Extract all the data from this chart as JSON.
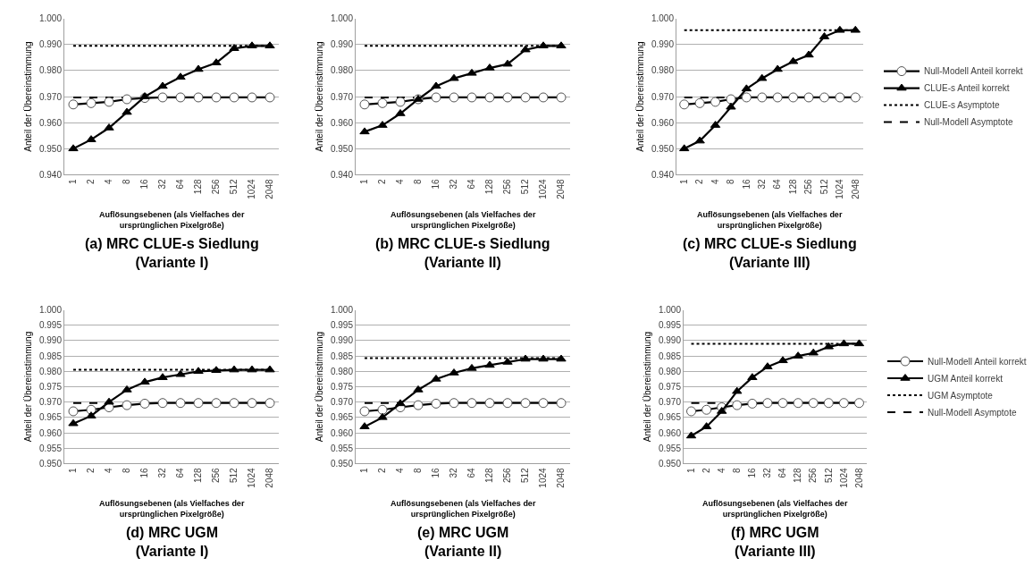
{
  "chart_data": [
    {
      "type": "line",
      "title": "(a) MRC CLUE-s Siedlung\n(Variante I)",
      "xlabel": "Auflösungsebenen (als Vielfaches der\nursprünglichen Pixelgröße)",
      "ylabel": "Anteil der Übereinstimmung",
      "categories": [
        "1",
        "2",
        "4",
        "8",
        "16",
        "32",
        "64",
        "128",
        "256",
        "512",
        "1024",
        "2048"
      ],
      "ylim": [
        0.94,
        1.0
      ],
      "yticks": [
        {
          "value": 0.94,
          "label": "0.940"
        },
        {
          "value": 0.95,
          "label": "0.950"
        },
        {
          "value": 0.96,
          "label": "0.960"
        },
        {
          "value": 0.97,
          "label": "0.970"
        },
        {
          "value": 0.98,
          "label": "0.980"
        },
        {
          "value": 0.99,
          "label": "0.990"
        },
        {
          "value": 1.0,
          "label": "1.000"
        }
      ],
      "grid": "y",
      "legend": false,
      "series": [
        {
          "color": "#000000",
          "marker": "none",
          "line_style": "dotted",
          "values": [
            0.9895,
            0.9895,
            0.9895,
            0.9895,
            0.9895,
            0.9895,
            0.9895,
            0.9895,
            0.9895,
            0.9895,
            0.9895,
            0.9895
          ]
        },
        {
          "color": "#000000",
          "marker": "none",
          "line_style": "dashed",
          "values": [
            0.9697,
            0.9697,
            0.9697,
            0.9697,
            null,
            null,
            null,
            null,
            null,
            null,
            null,
            null
          ]
        },
        {
          "color": "#000000",
          "marker": "circle",
          "line_style": "solid",
          "values": [
            0.967,
            0.9675,
            0.968,
            0.969,
            0.9695,
            0.9697,
            0.9697,
            0.9697,
            0.9697,
            0.9697,
            0.9697,
            0.9697
          ]
        },
        {
          "color": "#000000",
          "marker": "triangle",
          "line_style": "solid",
          "values": [
            0.95,
            0.9535,
            0.958,
            0.964,
            0.97,
            0.974,
            0.9775,
            0.9805,
            0.983,
            0.9885,
            0.9895,
            0.9895
          ]
        }
      ]
    },
    {
      "type": "line",
      "title": "(b) MRC CLUE-s Siedlung\n(Variante II)",
      "xlabel": "Auflösungsebenen (als Vielfaches der\nursprünglichen Pixelgröße)",
      "ylabel": "Anteil der Übereinstimmung",
      "categories": [
        "1",
        "2",
        "4",
        "8",
        "16",
        "32",
        "64",
        "128",
        "256",
        "512",
        "1024",
        "2048"
      ],
      "ylim": [
        0.94,
        1.0
      ],
      "yticks": [
        {
          "value": 0.94,
          "label": "0.940"
        },
        {
          "value": 0.95,
          "label": "0.950"
        },
        {
          "value": 0.96,
          "label": "0.960"
        },
        {
          "value": 0.97,
          "label": "0.970"
        },
        {
          "value": 0.98,
          "label": "0.980"
        },
        {
          "value": 0.99,
          "label": "0.990"
        },
        {
          "value": 1.0,
          "label": "1.000"
        }
      ],
      "grid": "y",
      "legend": false,
      "series": [
        {
          "color": "#000000",
          "marker": "none",
          "line_style": "dotted",
          "values": [
            0.9895,
            0.9895,
            0.9895,
            0.9895,
            0.9895,
            0.9895,
            0.9895,
            0.9895,
            0.9895,
            0.9895,
            0.9895,
            0.9895
          ]
        },
        {
          "color": "#000000",
          "marker": "none",
          "line_style": "dashed",
          "values": [
            0.9697,
            0.9697,
            0.9697,
            0.9697,
            null,
            null,
            null,
            null,
            null,
            null,
            null,
            null
          ]
        },
        {
          "color": "#000000",
          "marker": "circle",
          "line_style": "solid",
          "values": [
            0.967,
            0.9675,
            0.968,
            0.969,
            0.9697,
            0.9697,
            0.9697,
            0.9697,
            0.9697,
            0.9697,
            0.9697,
            0.9697
          ]
        },
        {
          "color": "#000000",
          "marker": "triangle",
          "line_style": "solid",
          "values": [
            0.9565,
            0.959,
            0.9635,
            0.969,
            0.974,
            0.977,
            0.979,
            0.981,
            0.9825,
            0.988,
            0.9895,
            0.9895
          ]
        }
      ]
    },
    {
      "type": "line",
      "title": "(c) MRC CLUE-s Siedlung\n(Variante III)",
      "xlabel": "Auflösungsebenen (als Vielfaches der\nursprünglichen Pixelgröße)",
      "ylabel": "Anteil der Übereinstimmung",
      "categories": [
        "1",
        "2",
        "4",
        "8",
        "16",
        "32",
        "64",
        "128",
        "256",
        "512",
        "1024",
        "2048"
      ],
      "ylim": [
        0.94,
        1.0
      ],
      "yticks": [
        {
          "value": 0.94,
          "label": "0.940"
        },
        {
          "value": 0.95,
          "label": "0.950"
        },
        {
          "value": 0.96,
          "label": "0.960"
        },
        {
          "value": 0.97,
          "label": "0.970"
        },
        {
          "value": 0.98,
          "label": "0.980"
        },
        {
          "value": 0.99,
          "label": "0.990"
        },
        {
          "value": 1.0,
          "label": "1.000"
        }
      ],
      "grid": "y",
      "legend": "right",
      "series": [
        {
          "name": "Null-Modell Anteil korrekt",
          "color": "#000000",
          "marker": "circle",
          "line_style": "solid",
          "values": [
            0.967,
            0.9675,
            0.968,
            0.969,
            0.9697,
            0.9697,
            0.9697,
            0.9697,
            0.9697,
            0.9697,
            0.9697,
            0.9697
          ]
        },
        {
          "name": "CLUE-s Anteil korrekt",
          "color": "#000000",
          "marker": "triangle",
          "line_style": "solid",
          "values": [
            0.95,
            0.953,
            0.959,
            0.966,
            0.973,
            0.977,
            0.9805,
            0.9835,
            0.986,
            0.993,
            0.9955,
            0.9955
          ]
        },
        {
          "name": "CLUE-s Asymptote",
          "color": "#000000",
          "marker": "none",
          "line_style": "dotted",
          "values": [
            0.9955,
            0.9955,
            0.9955,
            0.9955,
            0.9955,
            0.9955,
            0.9955,
            0.9955,
            0.9955,
            0.9955,
            0.9955,
            0.9955
          ]
        },
        {
          "name": "Null-Modell Asymptote",
          "color": "#000000",
          "marker": "none",
          "line_style": "dashed",
          "values": [
            0.9697,
            0.9697,
            0.9697,
            0.9697,
            null,
            null,
            null,
            null,
            null,
            null,
            null,
            null
          ]
        }
      ]
    },
    {
      "type": "line",
      "title": "(d) MRC UGM\n(Variante I)",
      "xlabel": "Auflösungsebenen (als Vielfaches der\nursprünglichen Pixelgröße)",
      "ylabel": "Anteil der Übereinstimmung",
      "categories": [
        "1",
        "2",
        "4",
        "8",
        "16",
        "32",
        "64",
        "128",
        "256",
        "512",
        "1024",
        "2048"
      ],
      "ylim": [
        0.95,
        1.0
      ],
      "yticks": [
        {
          "value": 0.95,
          "label": "0.950"
        },
        {
          "value": 0.955,
          "label": "0.955"
        },
        {
          "value": 0.96,
          "label": "0.960"
        },
        {
          "value": 0.965,
          "label": "0.965"
        },
        {
          "value": 0.97,
          "label": "0.970"
        },
        {
          "value": 0.975,
          "label": "0.975"
        },
        {
          "value": 0.98,
          "label": "0.980"
        },
        {
          "value": 0.985,
          "label": "0.985"
        },
        {
          "value": 0.99,
          "label": "0.990"
        },
        {
          "value": 0.995,
          "label": "0.995"
        },
        {
          "value": 1.0,
          "label": "1.000"
        }
      ],
      "grid": "y",
      "legend": false,
      "series": [
        {
          "color": "#000000",
          "marker": "none",
          "line_style": "dotted",
          "values": [
            0.9805,
            0.9805,
            0.9805,
            0.9805,
            0.9805,
            0.9805,
            0.9805,
            0.9805,
            0.9805,
            0.9805,
            0.9805,
            0.9805
          ]
        },
        {
          "color": "#000000",
          "marker": "none",
          "line_style": "dashed",
          "values": [
            0.9697,
            0.9697,
            0.9697,
            null,
            null,
            null,
            null,
            null,
            null,
            null,
            null,
            null
          ]
        },
        {
          "color": "#000000",
          "marker": "circle",
          "line_style": "solid",
          "values": [
            0.967,
            0.9675,
            0.9683,
            0.969,
            0.9695,
            0.9697,
            0.9697,
            0.9697,
            0.9697,
            0.9697,
            0.9697,
            0.9697
          ]
        },
        {
          "color": "#000000",
          "marker": "triangle",
          "line_style": "solid",
          "values": [
            0.963,
            0.9655,
            0.97,
            0.974,
            0.9765,
            0.978,
            0.979,
            0.98,
            0.9803,
            0.9805,
            0.9805,
            0.9805
          ]
        }
      ]
    },
    {
      "type": "line",
      "title": "(e) MRC UGM\n(Variante II)",
      "xlabel": "Auflösungsebenen (als Vielfaches der\nursprünglichen Pixelgröße)",
      "ylabel": "Anteil der Übereinstimmung",
      "categories": [
        "1",
        "2",
        "4",
        "8",
        "16",
        "32",
        "64",
        "128",
        "256",
        "512",
        "1024",
        "2048"
      ],
      "ylim": [
        0.95,
        1.0
      ],
      "yticks": [
        {
          "value": 0.95,
          "label": "0.950"
        },
        {
          "value": 0.955,
          "label": "0.955"
        },
        {
          "value": 0.96,
          "label": "0.960"
        },
        {
          "value": 0.965,
          "label": "0.965"
        },
        {
          "value": 0.97,
          "label": "0.970"
        },
        {
          "value": 0.975,
          "label": "0.975"
        },
        {
          "value": 0.98,
          "label": "0.980"
        },
        {
          "value": 0.985,
          "label": "0.985"
        },
        {
          "value": 0.99,
          "label": "0.990"
        },
        {
          "value": 0.995,
          "label": "0.995"
        },
        {
          "value": 1.0,
          "label": "1.000"
        }
      ],
      "grid": "y",
      "legend": false,
      "series": [
        {
          "color": "#000000",
          "marker": "none",
          "line_style": "dotted",
          "values": [
            0.9843,
            0.9843,
            0.9843,
            0.9843,
            0.9843,
            0.9843,
            0.9843,
            0.9843,
            0.9843,
            0.9843,
            0.9843,
            0.9843
          ]
        },
        {
          "color": "#000000",
          "marker": "none",
          "line_style": "dashed",
          "values": [
            0.9697,
            0.9697,
            0.9697,
            null,
            null,
            null,
            null,
            null,
            null,
            null,
            null,
            null
          ]
        },
        {
          "color": "#000000",
          "marker": "circle",
          "line_style": "solid",
          "values": [
            0.967,
            0.9675,
            0.9683,
            0.969,
            0.9695,
            0.9697,
            0.9697,
            0.9697,
            0.9697,
            0.9697,
            0.9697,
            0.9697
          ]
        },
        {
          "color": "#000000",
          "marker": "triangle",
          "line_style": "solid",
          "values": [
            0.962,
            0.965,
            0.9695,
            0.974,
            0.9775,
            0.9795,
            0.981,
            0.982,
            0.983,
            0.984,
            0.984,
            0.984
          ]
        }
      ]
    },
    {
      "type": "line",
      "title": "(f) MRC UGM\n(Variante III)",
      "xlabel": "Auflösungsebenen (als Vielfaches der\nursprünglichen Pixelgröße)",
      "ylabel": "Anteil der Übereinstimmung",
      "categories": [
        "1",
        "2",
        "4",
        "8",
        "16",
        "32",
        "64",
        "128",
        "256",
        "512",
        "1024",
        "2048"
      ],
      "ylim": [
        0.95,
        1.0
      ],
      "yticks": [
        {
          "value": 0.95,
          "label": "0.950"
        },
        {
          "value": 0.955,
          "label": "0.955"
        },
        {
          "value": 0.96,
          "label": "0.960"
        },
        {
          "value": 0.965,
          "label": "0.965"
        },
        {
          "value": 0.97,
          "label": "0.970"
        },
        {
          "value": 0.975,
          "label": "0.975"
        },
        {
          "value": 0.98,
          "label": "0.980"
        },
        {
          "value": 0.985,
          "label": "0.985"
        },
        {
          "value": 0.99,
          "label": "0.990"
        },
        {
          "value": 0.995,
          "label": "0.995"
        },
        {
          "value": 1.0,
          "label": "1.000"
        }
      ],
      "grid": "y",
      "legend": "right",
      "series": [
        {
          "name": "Null-Modell Anteil korrekt",
          "color": "#000000",
          "marker": "circle",
          "line_style": "solid",
          "values": [
            0.967,
            0.9675,
            0.9683,
            0.969,
            0.9695,
            0.9697,
            0.9697,
            0.9697,
            0.9697,
            0.9697,
            0.9697,
            0.9697
          ]
        },
        {
          "name": "UGM Anteil korrekt",
          "color": "#000000",
          "marker": "triangle",
          "line_style": "solid",
          "values": [
            0.959,
            0.962,
            0.967,
            0.9735,
            0.978,
            0.9815,
            0.9835,
            0.985,
            0.986,
            0.988,
            0.989,
            0.989
          ]
        },
        {
          "name": "UGM Asymptote",
          "color": "#000000",
          "marker": "none",
          "line_style": "dotted",
          "values": [
            0.989,
            0.989,
            0.989,
            0.989,
            0.989,
            0.989,
            0.989,
            0.989,
            0.989,
            0.989,
            0.989,
            0.989
          ]
        },
        {
          "name": "Null-Modell Asymptote",
          "color": "#000000",
          "marker": "none",
          "line_style": "dashed",
          "values": [
            0.9697,
            0.9697,
            0.9697,
            null,
            null,
            null,
            null,
            null,
            null,
            null,
            null,
            null
          ]
        }
      ]
    }
  ]
}
